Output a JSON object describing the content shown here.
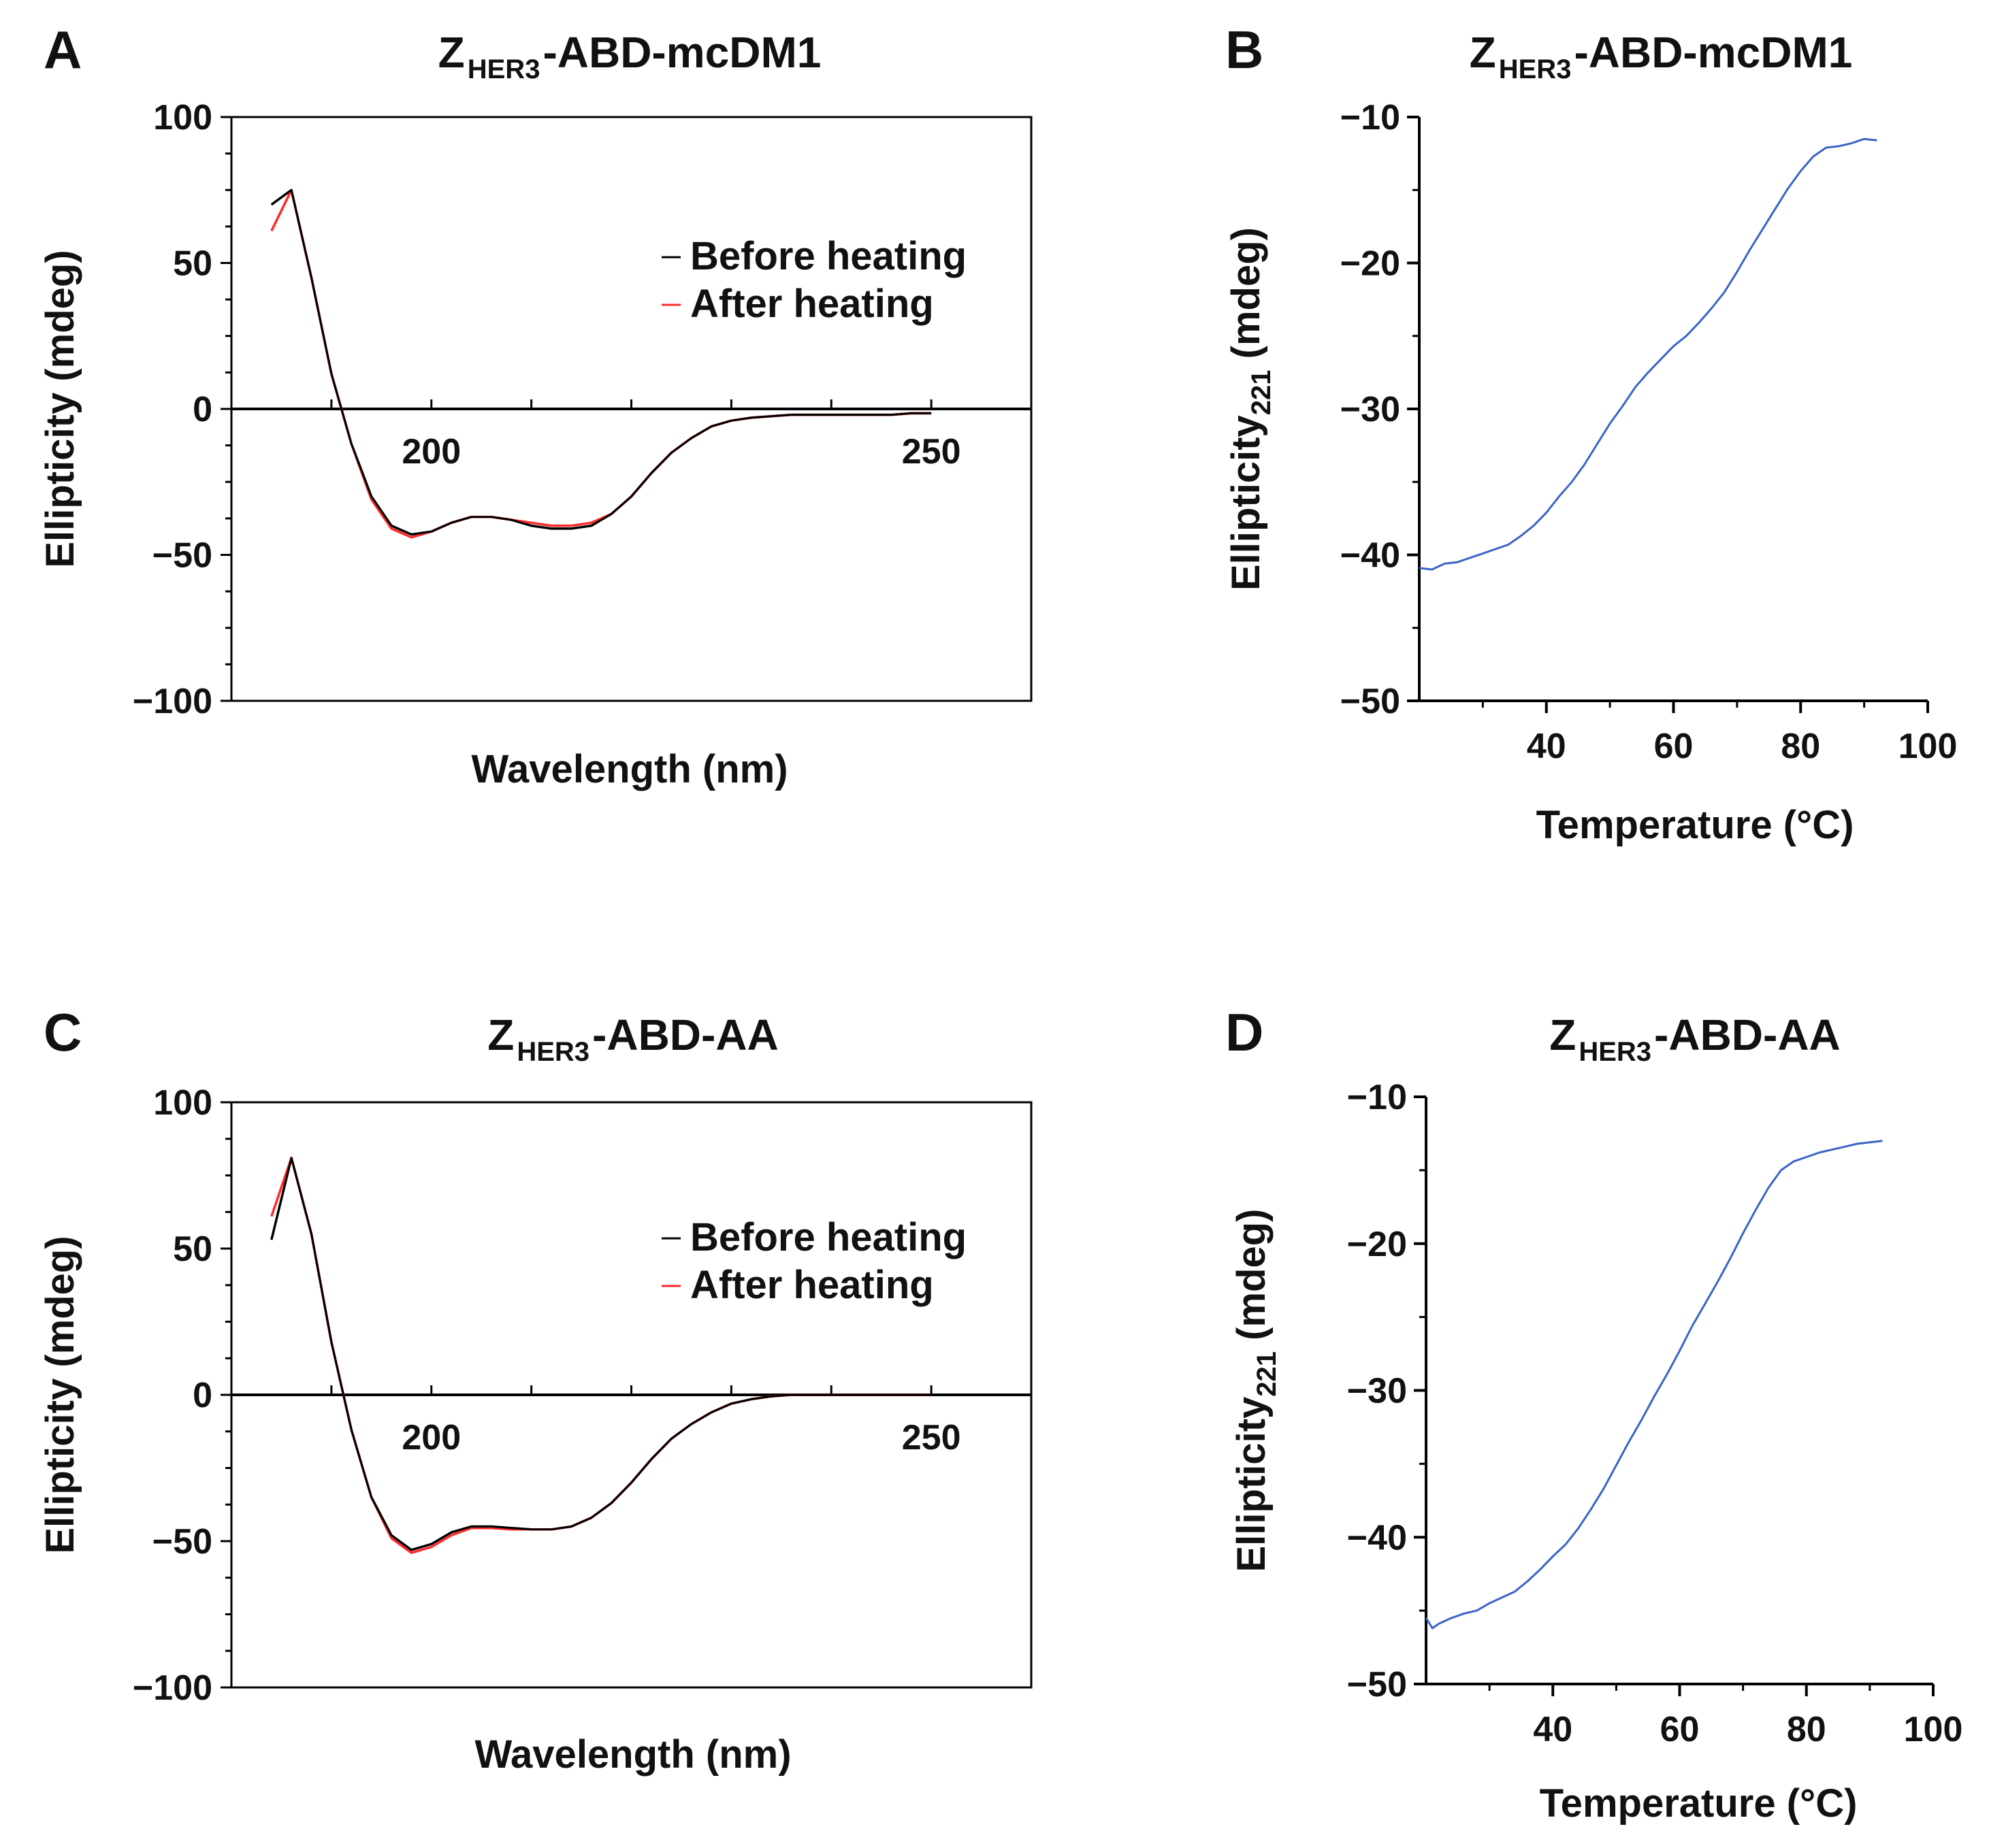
{
  "colors": {
    "before": "#000000",
    "after": "#ff2a2a",
    "thermal": "#3a64c8",
    "axis": "#000000"
  },
  "chart_data": [
    {
      "panel": "A",
      "type": "line",
      "title": {
        "main": "Z",
        "sub": "HER3",
        "rest": "-ABD-mcDM1"
      },
      "xlabel": "Wavelength (nm)",
      "ylabel": "Ellipticity (mdeg)",
      "xlim": [
        180,
        260
      ],
      "ylim": [
        -100,
        100
      ],
      "xticks": [
        "200",
        "250"
      ],
      "yticks": [
        "100",
        "50",
        "0",
        "−50",
        "−100"
      ],
      "legend": {
        "position": "top-right",
        "entries": [
          "Before heating",
          "After heating"
        ]
      },
      "series": [
        {
          "name": "Before heating",
          "color_key": "before",
          "x": [
            184,
            186,
            188,
            190,
            192,
            194,
            196,
            198,
            200,
            202,
            204,
            206,
            208,
            210,
            212,
            214,
            216,
            218,
            220,
            222,
            224,
            226,
            228,
            230,
            232,
            234,
            236,
            238,
            240,
            242,
            244,
            246,
            248,
            250
          ],
          "y": [
            70,
            75,
            45,
            12,
            -12,
            -30,
            -40,
            -43,
            -42,
            -39,
            -37,
            -37,
            -38,
            -40,
            -41,
            -41,
            -40,
            -36,
            -30,
            -22,
            -15,
            -10,
            -6,
            -4,
            -3,
            -2.5,
            -2,
            -2,
            -2,
            -2,
            -2,
            -2,
            -1.5,
            -1.5
          ]
        },
        {
          "name": "After heating",
          "color_key": "after",
          "x": [
            184,
            186,
            188,
            190,
            192,
            194,
            196,
            198,
            200,
            202,
            204,
            206,
            208,
            210,
            212,
            214,
            216,
            218,
            220,
            222,
            224,
            226,
            228,
            230,
            232,
            234,
            236,
            238,
            240,
            242,
            244,
            246,
            248,
            250
          ],
          "y": [
            61,
            75,
            45,
            12,
            -12,
            -31,
            -41,
            -44,
            -42,
            -39,
            -37,
            -37,
            -38,
            -39,
            -40,
            -40,
            -39,
            -36,
            -30,
            -22,
            -15,
            -10,
            -6,
            -4,
            -3,
            -2.5,
            -2,
            -2,
            -2,
            -2,
            -2,
            -2,
            -1.5,
            -1.5
          ]
        }
      ]
    },
    {
      "panel": "B",
      "type": "line",
      "title": {
        "main": "Z",
        "sub": "HER3",
        "rest": "-ABD-mcDM1"
      },
      "xlabel": "Temperature (°C)",
      "ylabel": {
        "main": "Ellipticity",
        "sub": "221",
        "rest": " (mdeg)"
      },
      "xlim": [
        20,
        100
      ],
      "ylim": [
        -50,
        -10
      ],
      "xticks": [
        "40",
        "60",
        "80",
        "100"
      ],
      "yticks": [
        "−10",
        "−20",
        "−30",
        "−40",
        "−50"
      ],
      "series": [
        {
          "color_key": "thermal",
          "x": [
            20,
            22,
            24,
            26,
            28,
            30,
            32,
            34,
            36,
            38,
            40,
            42,
            44,
            46,
            48,
            50,
            52,
            54,
            56,
            58,
            60,
            62,
            64,
            66,
            68,
            70,
            72,
            74,
            76,
            78,
            80,
            82,
            84,
            86,
            88,
            90,
            92
          ],
          "y": [
            -40.9,
            -41,
            -40.6,
            -40.5,
            -40.2,
            -39.9,
            -39.6,
            -39.3,
            -38.7,
            -38,
            -37.1,
            -36,
            -35,
            -33.8,
            -32.4,
            -31,
            -29.8,
            -28.5,
            -27.5,
            -26.6,
            -25.7,
            -25,
            -24.1,
            -23.1,
            -22,
            -20.6,
            -19.1,
            -17.7,
            -16.3,
            -14.9,
            -13.7,
            -12.7,
            -12.1,
            -12,
            -11.8,
            -11.5,
            -11.6
          ]
        }
      ]
    },
    {
      "panel": "C",
      "type": "line",
      "title": {
        "main": "Z",
        "sub": "HER3",
        "rest": "-ABD-AA"
      },
      "xlabel": "Wavelength (nm)",
      "ylabel": "Ellipticity (mdeg)",
      "xlim": [
        180,
        260
      ],
      "ylim": [
        -100,
        100
      ],
      "xticks": [
        "200",
        "250"
      ],
      "yticks": [
        "100",
        "50",
        "0",
        "−50",
        "−100"
      ],
      "legend": {
        "position": "top-right",
        "entries": [
          "Before heating",
          "After heating"
        ]
      },
      "series": [
        {
          "name": "Before heating",
          "color_key": "before",
          "x": [
            184,
            186,
            188,
            190,
            192,
            194,
            196,
            198,
            200,
            202,
            204,
            206,
            208,
            210,
            212,
            214,
            216,
            218,
            220,
            222,
            224,
            226,
            228,
            230,
            232,
            234,
            236,
            238,
            240,
            242,
            244,
            246,
            248,
            250
          ],
          "y": [
            53,
            81,
            55,
            18,
            -12,
            -35,
            -48,
            -53,
            -51,
            -47,
            -45,
            -45,
            -45.5,
            -46,
            -46,
            -45,
            -42,
            -37,
            -30,
            -22,
            -15,
            -10,
            -6,
            -3,
            -1.5,
            -0.5,
            0,
            0,
            0,
            0,
            0,
            0,
            0,
            0
          ]
        },
        {
          "name": "After heating",
          "color_key": "after",
          "x": [
            184,
            186,
            188,
            190,
            192,
            194,
            196,
            198,
            200,
            202,
            204,
            206,
            208,
            210,
            212,
            214,
            216,
            218,
            220,
            222,
            224,
            226,
            228,
            230,
            232,
            234,
            236,
            238,
            240,
            242,
            244,
            246,
            248,
            250
          ],
          "y": [
            61,
            81,
            55,
            18,
            -12,
            -35,
            -49,
            -54,
            -52,
            -48,
            -45.5,
            -45.5,
            -46,
            -46,
            -46,
            -45,
            -42,
            -37,
            -30,
            -22,
            -15,
            -10,
            -6,
            -3,
            -1.5,
            -0.5,
            0,
            0,
            0,
            0,
            0,
            0,
            0,
            0
          ]
        }
      ]
    },
    {
      "panel": "D",
      "type": "line",
      "title": {
        "main": "Z",
        "sub": "HER3",
        "rest": "-ABD-AA"
      },
      "xlabel": "Temperature (°C)",
      "ylabel": {
        "main": "Ellipticity",
        "sub": "221",
        "rest": " (mdeg)"
      },
      "xlim": [
        20,
        100
      ],
      "ylim": [
        -50,
        -10
      ],
      "xticks": [
        "40",
        "60",
        "80",
        "100"
      ],
      "yticks": [
        "−10",
        "−20",
        "−30",
        "−40",
        "−50"
      ],
      "series": [
        {
          "color_key": "thermal",
          "x": [
            20,
            21,
            22,
            24,
            26,
            28,
            30,
            32,
            34,
            36,
            38,
            40,
            42,
            44,
            46,
            48,
            50,
            52,
            54,
            56,
            58,
            60,
            62,
            64,
            66,
            68,
            70,
            72,
            74,
            76,
            78,
            80,
            82,
            84,
            86,
            88,
            90,
            92
          ],
          "y": [
            -45.5,
            -46.2,
            -45.9,
            -45.5,
            -45.2,
            -45,
            -44.5,
            -44.1,
            -43.7,
            -43,
            -42.2,
            -41.3,
            -40.5,
            -39.4,
            -38.1,
            -36.7,
            -35.1,
            -33.5,
            -32,
            -30.4,
            -28.9,
            -27.3,
            -25.6,
            -24.1,
            -22.6,
            -21,
            -19.3,
            -17.7,
            -16.2,
            -15,
            -14.4,
            -14.1,
            -13.8,
            -13.6,
            -13.4,
            -13.2,
            -13.1,
            -13
          ]
        }
      ]
    }
  ]
}
